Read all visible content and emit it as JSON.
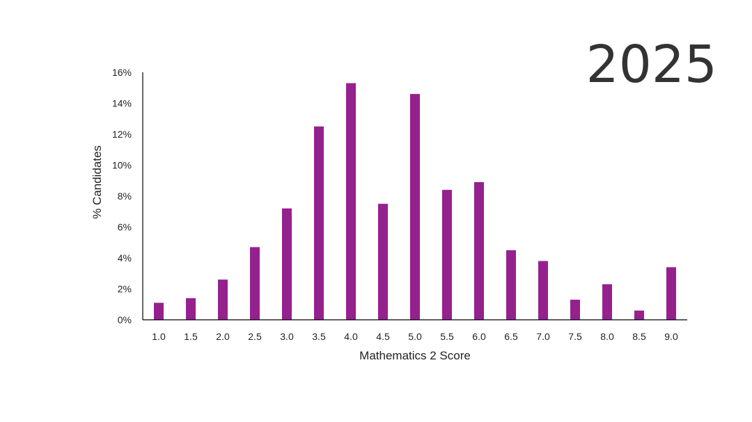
{
  "year_text": "2025",
  "colors": {
    "bar": "#95218f",
    "axis": "#000000",
    "text": "#222222"
  },
  "chart_data": {
    "type": "bar",
    "xlabel": "Mathematics 2 Score",
    "ylabel": "% Candidates",
    "ylim": [
      0,
      16
    ],
    "yticks": [
      0,
      2,
      4,
      6,
      8,
      10,
      12,
      14,
      16
    ],
    "ytick_labels": [
      "0%",
      "2%",
      "4%",
      "6%",
      "8%",
      "10%",
      "12%",
      "14%",
      "16%"
    ],
    "grid": false,
    "categories": [
      "1.0",
      "1.5",
      "2.0",
      "2.5",
      "3.0",
      "3.5",
      "4.0",
      "4.5",
      "5.0",
      "5.5",
      "6.0",
      "6.5",
      "7.0",
      "7.5",
      "8.0",
      "8.5",
      "9.0"
    ],
    "values": [
      1.1,
      1.4,
      2.6,
      4.7,
      7.2,
      12.5,
      15.3,
      7.5,
      14.6,
      8.4,
      8.9,
      4.5,
      3.8,
      1.3,
      2.3,
      0.6,
      3.4
    ]
  }
}
